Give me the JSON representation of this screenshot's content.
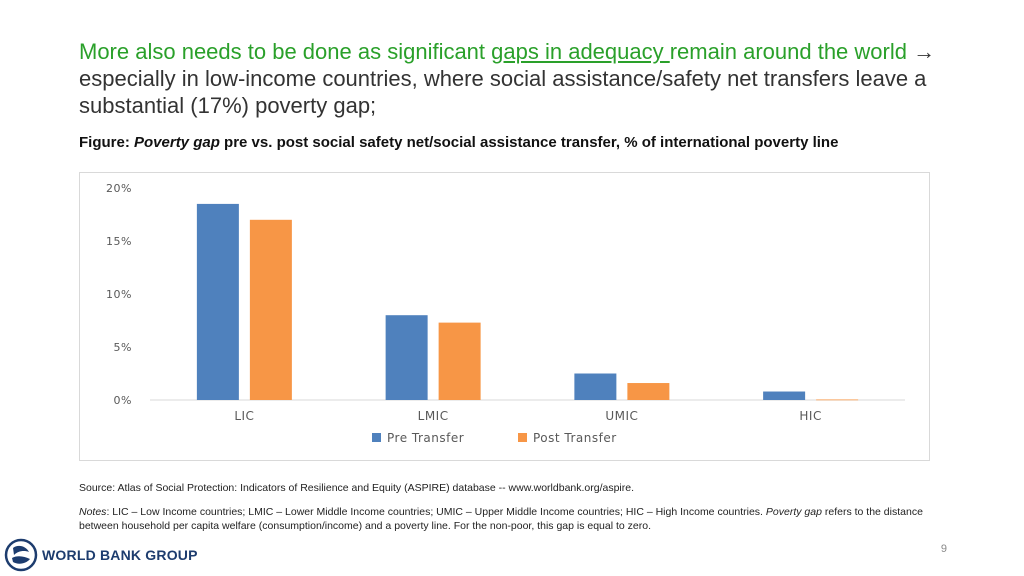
{
  "headline": {
    "part1": "More also needs to be done as significant ",
    "part2": "gaps in adequacy ",
    "part3": "remain around the world",
    "arrow": "→",
    "part4": " especially in low-income countries, where social assistance/safety net transfers leave a substantial (17%) poverty gap;"
  },
  "subtitle": {
    "prefix": "Figure: ",
    "em": "Poverty gap",
    "rest": " pre vs. post social safety net/social assistance transfer, % of international poverty line"
  },
  "chart_data": {
    "type": "bar",
    "categories": [
      "LIC",
      "LMIC",
      "UMIC",
      "HIC"
    ],
    "series": [
      {
        "name": "Pre Transfer",
        "values": [
          18.5,
          8.0,
          2.5,
          0.8
        ],
        "color": "#4f81bd"
      },
      {
        "name": "Post Transfer",
        "values": [
          17.0,
          7.3,
          1.6,
          0.05
        ],
        "color": "#f79646"
      }
    ],
    "yticks": [
      "0%",
      "5%",
      "10%",
      "15%",
      "20%"
    ],
    "ylim": [
      0,
      20
    ],
    "grid": false,
    "legend": "bottom"
  },
  "source": "Source: Atlas of Social Protection: Indicators of Resilience and Equity (ASPIRE) database -- www.worldbank.org/aspire.",
  "notes": {
    "label": "Notes",
    "text1": ": LIC – Low Income countries; LMIC – Lower Middle Income countries; UMIC – Upper Middle Income countries; HIC – High Income countries. ",
    "em": "Poverty gap",
    "text2": " refers to the distance between household per capita welfare (consumption/income) and a poverty line. For the non-poor, this gap is equal to zero."
  },
  "logo": {
    "text": "WORLD BANK GROUP",
    "icon": "globe-icon",
    "color": "#1d3c6e"
  },
  "page_number": "9"
}
